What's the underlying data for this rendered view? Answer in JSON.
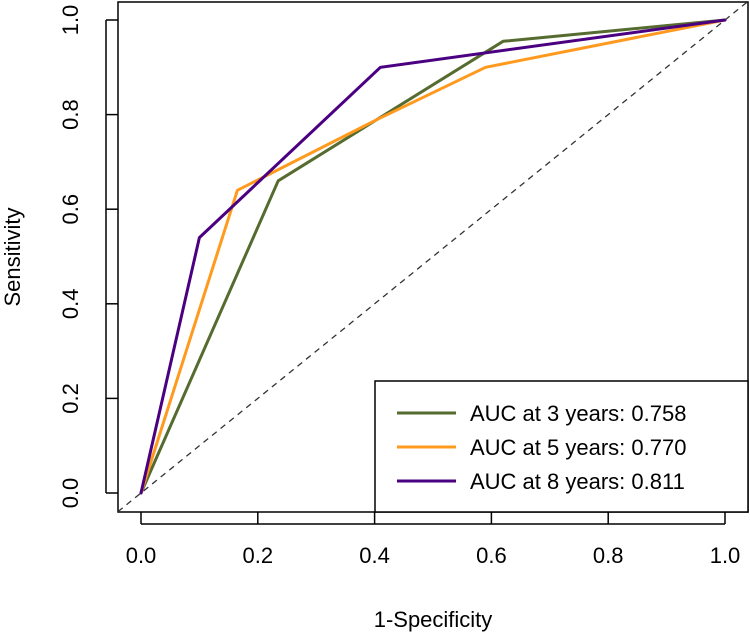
{
  "chart_data": {
    "type": "line",
    "title": "",
    "xlabel": "1-Specificity",
    "ylabel": "Sensitivity",
    "xlim": [
      0.0,
      1.0
    ],
    "ylim": [
      0.0,
      1.0
    ],
    "x_ticks": [
      "0.0",
      "0.2",
      "0.4",
      "0.6",
      "0.8",
      "1.0"
    ],
    "y_ticks": [
      "0.0",
      "0.2",
      "0.4",
      "0.6",
      "0.8",
      "1.0"
    ],
    "grid": false,
    "legend_position": "bottom-right",
    "reference_line": {
      "style": "dashed",
      "x": [
        0.0,
        1.0
      ],
      "y": [
        0.0,
        1.0
      ],
      "color": "#333333"
    },
    "series": [
      {
        "name": "AUC at 3 years: 0.758",
        "color": "#556b2f",
        "x": [
          0.0,
          0.235,
          0.62,
          1.0
        ],
        "y": [
          0.0,
          0.66,
          0.955,
          1.0
        ]
      },
      {
        "name": "AUC at 5 years: 0.770",
        "color": "#ff9a1f",
        "x": [
          0.0,
          0.165,
          0.405,
          0.59,
          1.0
        ],
        "y": [
          0.0,
          0.64,
          0.79,
          0.9,
          1.0
        ]
      },
      {
        "name": "AUC at 8 years: 0.811",
        "color": "#4b0082",
        "x": [
          0.0,
          0.1,
          0.41,
          1.0
        ],
        "y": [
          0.0,
          0.54,
          0.9,
          1.0
        ]
      }
    ]
  }
}
